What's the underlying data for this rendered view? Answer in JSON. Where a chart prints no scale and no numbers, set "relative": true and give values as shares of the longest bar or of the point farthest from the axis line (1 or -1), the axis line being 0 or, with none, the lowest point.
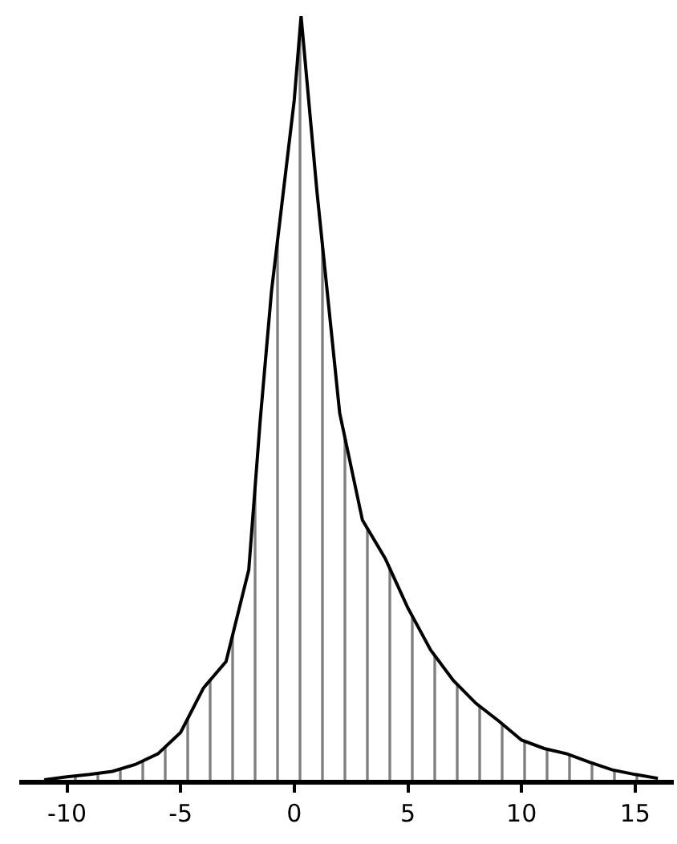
{
  "chart_data": {
    "type": "area",
    "relative": true,
    "x": [
      -11,
      -10,
      -9,
      -8,
      -7,
      -6,
      -5,
      -4,
      -3,
      -2,
      -1.5,
      -1,
      0,
      0.3,
      1,
      2,
      3,
      4,
      5,
      6,
      7,
      8,
      9,
      10,
      11,
      12,
      13,
      14,
      15,
      16
    ],
    "series": [
      {
        "color": "#000000",
        "values": [
          0,
          0.004,
          0.007,
          0.011,
          0.02,
          0.034,
          0.062,
          0.12,
          0.155,
          0.275,
          0.47,
          0.64,
          0.89,
          1,
          0.77,
          0.48,
          0.34,
          0.29,
          0.225,
          0.17,
          0.13,
          0.1,
          0.077,
          0.052,
          0.041,
          0.034,
          0.023,
          0.013,
          0.007,
          0.002
        ]
      }
    ],
    "xlim": [
      -12.1,
      16.7
    ],
    "xticks": [
      -10,
      -5,
      0,
      5,
      10,
      15
    ],
    "marker": "none",
    "line_style": "solid"
  }
}
